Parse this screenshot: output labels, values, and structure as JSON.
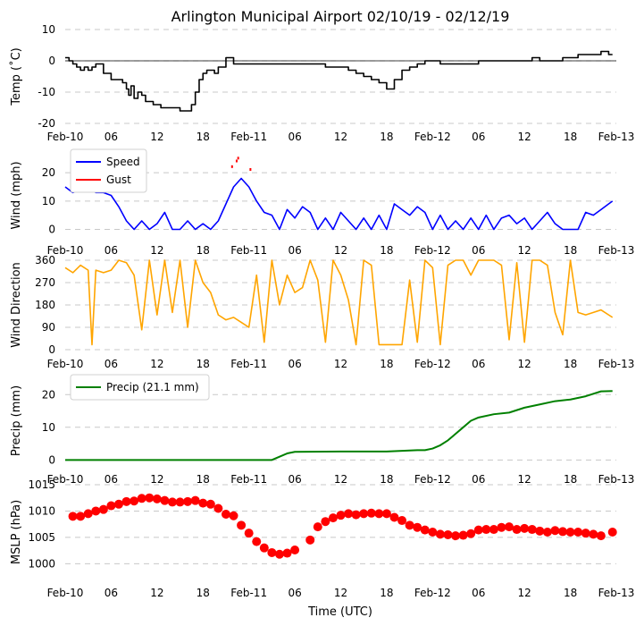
{
  "figure": {
    "title": "Arlington Municipal Airport 02/10/19 - 02/12/19",
    "xlabel": "Time (UTC)",
    "x_ticks": [
      "Feb-10",
      "06",
      "12",
      "18",
      "Feb-11",
      "06",
      "12",
      "18",
      "Feb-12",
      "06",
      "12",
      "18",
      "Feb-13"
    ],
    "x_range_hours": [
      0,
      72
    ]
  },
  "chart_data": [
    {
      "id": "temp",
      "type": "line",
      "ylabel": "Temp ($^\\circ$C)",
      "ylabel_text": "Temp (˚C)",
      "ylim": [
        -20,
        10
      ],
      "yticks": [
        10,
        0,
        -10,
        -20
      ],
      "color": "#000000",
      "zero_line": true,
      "series": [
        {
          "name": "Temp",
          "step": true,
          "x": [
            0,
            0.5,
            1,
            1.5,
            2,
            2.5,
            3,
            3.5,
            4,
            5,
            6,
            7,
            7.5,
            8,
            8.3,
            8.6,
            9,
            9.5,
            10,
            10.5,
            11,
            11.5,
            12,
            12.5,
            13,
            14,
            15,
            15.5,
            16,
            16.5,
            17,
            17.5,
            18,
            18.5,
            19,
            19.5,
            20,
            21,
            22,
            24,
            26,
            28,
            30,
            32,
            34,
            36,
            37,
            38,
            39,
            40,
            41,
            42,
            43,
            44,
            45,
            46,
            47,
            48,
            49,
            50,
            51,
            52,
            53,
            54,
            55,
            56,
            57,
            58,
            59,
            60,
            61,
            62,
            63,
            64,
            65,
            66,
            67,
            68,
            69,
            70,
            71,
            71.5
          ],
          "y": [
            1,
            0,
            -1,
            -2,
            -3,
            -2,
            -3,
            -2,
            -1,
            -4,
            -6,
            -6,
            -7,
            -9,
            -11,
            -8,
            -12,
            -10,
            -11,
            -13,
            -13,
            -14,
            -14,
            -15,
            -15,
            -15,
            -16,
            -16,
            -16,
            -14,
            -10,
            -6,
            -4,
            -3,
            -3,
            -4,
            -2,
            1,
            -1,
            -1,
            -1,
            -1,
            -1,
            -1,
            -2,
            -2,
            -3,
            -4,
            -5,
            -6,
            -7,
            -9,
            -6,
            -3,
            -2,
            -1,
            0,
            0,
            -1,
            -1,
            -1,
            -1,
            -1,
            0,
            0,
            0,
            0,
            0,
            0,
            0,
            1,
            0,
            0,
            0,
            1,
            1,
            2,
            2,
            2,
            3,
            2,
            2
          ]
        }
      ]
    },
    {
      "id": "wind",
      "type": "line",
      "ylabel": "Wind (mph)",
      "ylim": [
        -3,
        27
      ],
      "yticks": [
        20,
        10,
        0
      ],
      "legend": [
        "Speed",
        "Gust"
      ],
      "legend_position": "top-left",
      "series": [
        {
          "name": "Speed",
          "color": "#0000ff",
          "x": [
            0,
            1,
            2,
            3,
            4,
            5,
            6,
            7,
            8,
            9,
            10,
            11,
            12,
            13,
            14,
            15,
            16,
            17,
            18,
            19,
            20,
            21,
            22,
            23,
            24,
            25,
            26,
            27,
            28,
            29,
            30,
            31,
            32,
            33,
            34,
            35,
            36,
            37,
            38,
            39,
            40,
            41,
            42,
            43,
            44,
            45,
            46,
            47,
            48,
            49,
            50,
            51,
            52,
            53,
            54,
            55,
            56,
            57,
            58,
            59,
            60,
            61,
            62,
            63,
            64,
            65,
            66,
            67,
            68,
            69,
            70,
            71,
            71.5
          ],
          "y": [
            15,
            13,
            14,
            15,
            13,
            13,
            12,
            8,
            3,
            0,
            3,
            0,
            2,
            6,
            0,
            0,
            3,
            0,
            2,
            0,
            3,
            9,
            15,
            18,
            15,
            10,
            6,
            5,
            0,
            7,
            4,
            8,
            6,
            0,
            4,
            0,
            6,
            3,
            0,
            4,
            0,
            5,
            0,
            9,
            7,
            5,
            8,
            6,
            0,
            5,
            0,
            3,
            0,
            4,
            0,
            5,
            0,
            4,
            5,
            2,
            4,
            0,
            3,
            6,
            2,
            0,
            0,
            0,
            6,
            5,
            7,
            9,
            10
          ]
        },
        {
          "name": "Gust",
          "color": "#ff0000",
          "x": [
            21.8,
            22.4,
            22.6,
            24.2
          ],
          "y": [
            22,
            24,
            25,
            21
          ]
        }
      ]
    },
    {
      "id": "wdir",
      "type": "line",
      "ylabel": "Wind Direction",
      "ylim": [
        0,
        360
      ],
      "yticks": [
        360,
        270,
        180,
        90,
        0
      ],
      "color": "#ffa500",
      "series": [
        {
          "name": "Direction",
          "x": [
            0,
            1,
            2,
            3,
            3.5,
            4,
            5,
            6,
            7,
            8,
            9,
            10,
            11,
            12,
            13,
            14,
            15,
            16,
            17,
            18,
            19,
            20,
            21,
            22,
            23,
            24,
            25,
            26,
            27,
            28,
            29,
            30,
            31,
            32,
            33,
            34,
            35,
            36,
            37,
            38,
            39,
            40,
            41,
            42,
            43,
            44,
            45,
            46,
            47,
            48,
            49,
            50,
            51,
            52,
            53,
            54,
            55,
            56,
            57,
            58,
            59,
            60,
            61,
            62,
            63,
            64,
            65,
            66,
            67,
            68,
            69,
            70,
            71,
            71.5
          ],
          "y": [
            330,
            310,
            340,
            320,
            20,
            320,
            310,
            320,
            360,
            350,
            300,
            80,
            360,
            140,
            360,
            150,
            360,
            90,
            360,
            270,
            230,
            140,
            120,
            130,
            110,
            90,
            300,
            30,
            360,
            180,
            300,
            230,
            250,
            360,
            280,
            30,
            360,
            300,
            200,
            20,
            360,
            340,
            20,
            20,
            20,
            20,
            280,
            30,
            360,
            330,
            20,
            340,
            360,
            360,
            300,
            360,
            360,
            360,
            340,
            40,
            350,
            30,
            360,
            360,
            340,
            150,
            60,
            360,
            150,
            140,
            150,
            160,
            140,
            130
          ]
        }
      ]
    },
    {
      "id": "precip",
      "type": "line",
      "ylabel": "Precip (mm)",
      "ylim": [
        -1,
        25
      ],
      "yticks": [
        20,
        10,
        0
      ],
      "color": "#008000",
      "legend": [
        "Precip (21.1 mm)"
      ],
      "legend_position": "top-left",
      "series": [
        {
          "name": "Precip (21.1 mm)",
          "x": [
            0,
            27,
            28,
            29,
            30,
            36,
            42,
            46,
            47,
            48,
            49,
            50,
            51,
            52,
            53,
            54,
            56,
            58,
            60,
            62,
            64,
            66,
            68,
            70,
            71.5
          ],
          "y": [
            0,
            0,
            1,
            2,
            2.5,
            2.6,
            2.6,
            3,
            3,
            3.5,
            4.5,
            6,
            8,
            10,
            12,
            13,
            14,
            14.5,
            16,
            17,
            18,
            18.5,
            19.5,
            21,
            21.1
          ]
        }
      ]
    },
    {
      "id": "mslp",
      "type": "scatter",
      "ylabel": "MSLP (hPa)",
      "ylim": [
        997,
        1015
      ],
      "yticks": [
        1015,
        1010,
        1005,
        1000
      ],
      "color": "#ff0000",
      "series": [
        {
          "name": "MSLP",
          "x": [
            1,
            2,
            3,
            4,
            5,
            6,
            7,
            8,
            9,
            10,
            11,
            12,
            13,
            14,
            15,
            16,
            17,
            18,
            19,
            20,
            21,
            22,
            23,
            24,
            25,
            26,
            27,
            28,
            29,
            30,
            32,
            33,
            34,
            35,
            36,
            37,
            38,
            39,
            40,
            41,
            42,
            43,
            44,
            45,
            46,
            47,
            48,
            49,
            50,
            51,
            52,
            53,
            54,
            55,
            56,
            57,
            58,
            59,
            60,
            61,
            62,
            63,
            64,
            65,
            66,
            67,
            68,
            69,
            70,
            71.5
          ],
          "y": [
            1009,
            1009,
            1009.5,
            1010,
            1010.3,
            1011,
            1011.3,
            1011.8,
            1011.9,
            1012.4,
            1012.5,
            1012.3,
            1012,
            1011.7,
            1011.7,
            1011.8,
            1012,
            1011.5,
            1011.3,
            1010.5,
            1009.4,
            1009.1,
            1007.3,
            1005.8,
            1004.2,
            1003,
            1002.1,
            1001.8,
            1002,
            1002.6,
            1004.5,
            1007,
            1008,
            1008.7,
            1009.2,
            1009.5,
            1009.3,
            1009.5,
            1009.6,
            1009.5,
            1009.5,
            1008.8,
            1008.2,
            1007.3,
            1006.9,
            1006.4,
            1006,
            1005.6,
            1005.5,
            1005.3,
            1005.4,
            1005.7,
            1006.4,
            1006.5,
            1006.5,
            1006.9,
            1007,
            1006.5,
            1006.7,
            1006.5,
            1006.2,
            1006,
            1006.3,
            1006.1,
            1006,
            1006,
            1005.8,
            1005.6,
            1005.3,
            1006
          ]
        }
      ]
    }
  ]
}
